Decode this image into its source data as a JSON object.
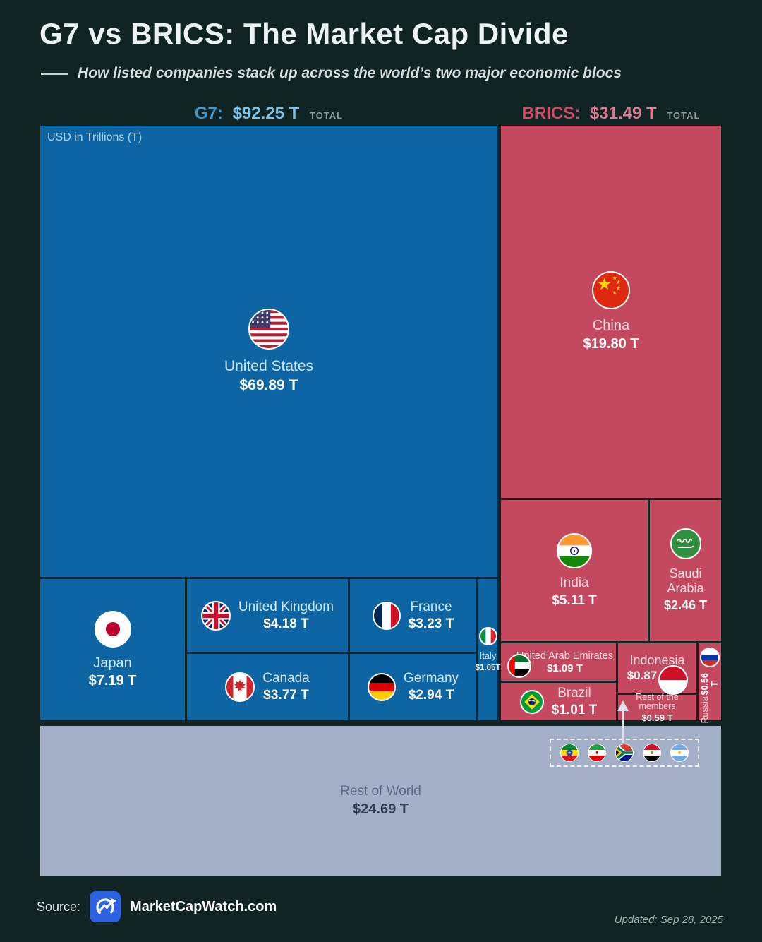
{
  "page": {
    "title": "G7 vs BRICS: The Market Cap Divide",
    "subtitle": "How listed companies stack up across the world’s two major economic blocs",
    "unit_label": "USD in Trillions (T)",
    "source_label": "Source:",
    "source_name": "MarketCapWatch.com",
    "updated": "Updated: Sep 28, 2025"
  },
  "colors": {
    "background": "#0f2423",
    "g7_blue": "#0d66a3",
    "brics_red": "#c4495f",
    "rest_of_world_gray": "#a4afc8",
    "g7_header_blue": "#3f9ad2",
    "brics_header_red": "#d14b66",
    "logo_blue": "#2d63e0"
  },
  "chart_data": {
    "type": "treemap",
    "title": "G7 vs BRICS: The Market Cap Divide",
    "unit": "USD in Trillions (T)",
    "groups": [
      {
        "id": "g7",
        "label": "G7:",
        "total": "$92.25 T",
        "total_value": 92.25,
        "total_suffix": "TOTAL",
        "items": [
          {
            "name": "United States",
            "value_label": "$69.89 T",
            "value": 69.89,
            "flag": "united-states"
          },
          {
            "name": "Japan",
            "value_label": "$7.19 T",
            "value": 7.19,
            "flag": "japan"
          },
          {
            "name": "United Kingdom",
            "value_label": "$4.18 T",
            "value": 4.18,
            "flag": "united-kingdom"
          },
          {
            "name": "Canada",
            "value_label": "$3.77 T",
            "value": 3.77,
            "flag": "canada"
          },
          {
            "name": "France",
            "value_label": "$3.23 T",
            "value": 3.23,
            "flag": "france"
          },
          {
            "name": "Germany",
            "value_label": "$2.94 T",
            "value": 2.94,
            "flag": "germany"
          },
          {
            "name": "Italy",
            "value_label": "$1.05T",
            "value": 1.05,
            "flag": "italy"
          }
        ]
      },
      {
        "id": "brics",
        "label": "BRICS:",
        "total": "$31.49 T",
        "total_value": 31.49,
        "total_suffix": "TOTAL",
        "items": [
          {
            "name": "China",
            "value_label": "$19.80 T",
            "value": 19.8,
            "flag": "china"
          },
          {
            "name": "India",
            "value_label": "$5.11 T",
            "value": 5.11,
            "flag": "india"
          },
          {
            "name": "Saudi Arabia",
            "value_label": "$2.46 T",
            "value": 2.46,
            "flag": "saudi-arabia"
          },
          {
            "name": "United Arab Emirates",
            "value_label": "$1.09 T",
            "value": 1.09,
            "flag": "uae"
          },
          {
            "name": "Brazil",
            "value_label": "$1.01 T",
            "value": 1.01,
            "flag": "brazil"
          },
          {
            "name": "Indonesia",
            "value_label": "$0.87 T",
            "value": 0.87,
            "flag": "indonesia"
          },
          {
            "name": "Rest of the members",
            "value_label": "$0.59 T",
            "value": 0.59,
            "flag": ""
          },
          {
            "name": "Russia",
            "value_label": "$0.56 T",
            "value": 0.56,
            "flag": "russia"
          }
        ]
      }
    ],
    "rest_of_world": {
      "name": "Rest of World",
      "value_label": "$24.69 T",
      "value": 24.69
    },
    "rest_members_flags": [
      "ethiopia",
      "iran",
      "south-africa",
      "egypt",
      "argentina"
    ]
  }
}
